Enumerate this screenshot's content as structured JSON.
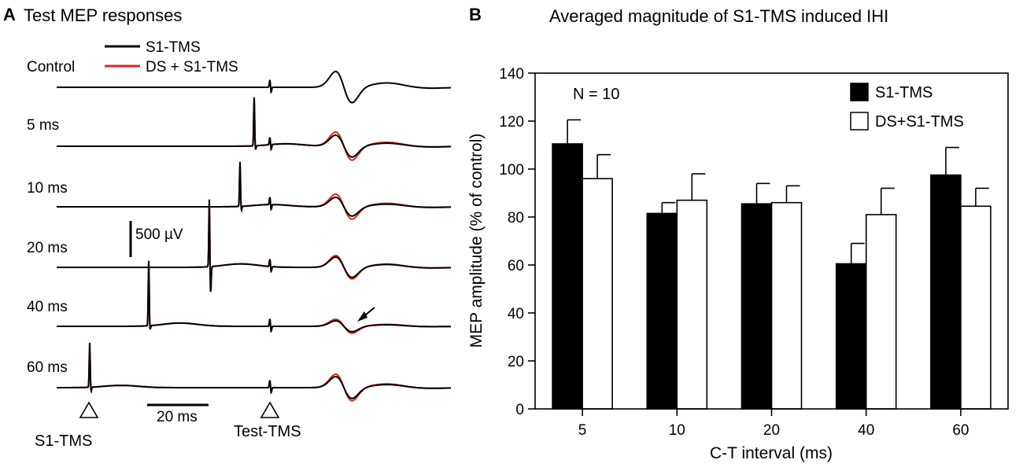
{
  "panel_a": {
    "letter": "A",
    "title": "Test MEP responses",
    "legend": [
      {
        "label": "S1-TMS",
        "color": "#000000"
      },
      {
        "label": "DS + S1-TMS",
        "color": "#e0261c"
      }
    ],
    "conditions": [
      {
        "label": "Control",
        "interval_ms": null
      },
      {
        "label": "5 ms",
        "interval_ms": 5
      },
      {
        "label": "10 ms",
        "interval_ms": 10
      },
      {
        "label": "20 ms",
        "interval_ms": 20
      },
      {
        "label": "40 ms",
        "interval_ms": 40
      },
      {
        "label": "60 ms",
        "interval_ms": 60
      }
    ],
    "scale_voltage": "500 µV",
    "scale_time": "20 ms",
    "marker_s1": "S1-TMS",
    "marker_test": "Test-TMS",
    "colors": {
      "s1": "#000000",
      "ds": "#e0261c"
    }
  },
  "chart_data": {
    "type": "bar",
    "panel_letter": "B",
    "title": "Averaged magnitude of S1-TMS induced IHI",
    "xlabel": "C-T interval (ms)",
    "ylabel": "MEP amplitude (% of control)",
    "ylim": [
      0,
      140
    ],
    "yticks": [
      0,
      20,
      40,
      60,
      80,
      100,
      120,
      140
    ],
    "categories": [
      "5",
      "10",
      "20",
      "40",
      "60"
    ],
    "annotation": "N = 10",
    "legend_position": "top-right",
    "series": [
      {
        "name": "S1-TMS",
        "fill": "#000000",
        "values": [
          110.5,
          81.5,
          85.5,
          60.5,
          97.5
        ],
        "errors": [
          10,
          4.5,
          8.5,
          8.5,
          11.5
        ]
      },
      {
        "name": "DS+S1-TMS",
        "fill": "#ffffff",
        "values": [
          96,
          87,
          86,
          81,
          84.5
        ],
        "errors": [
          10,
          11,
          7,
          11,
          7.5
        ]
      }
    ]
  }
}
